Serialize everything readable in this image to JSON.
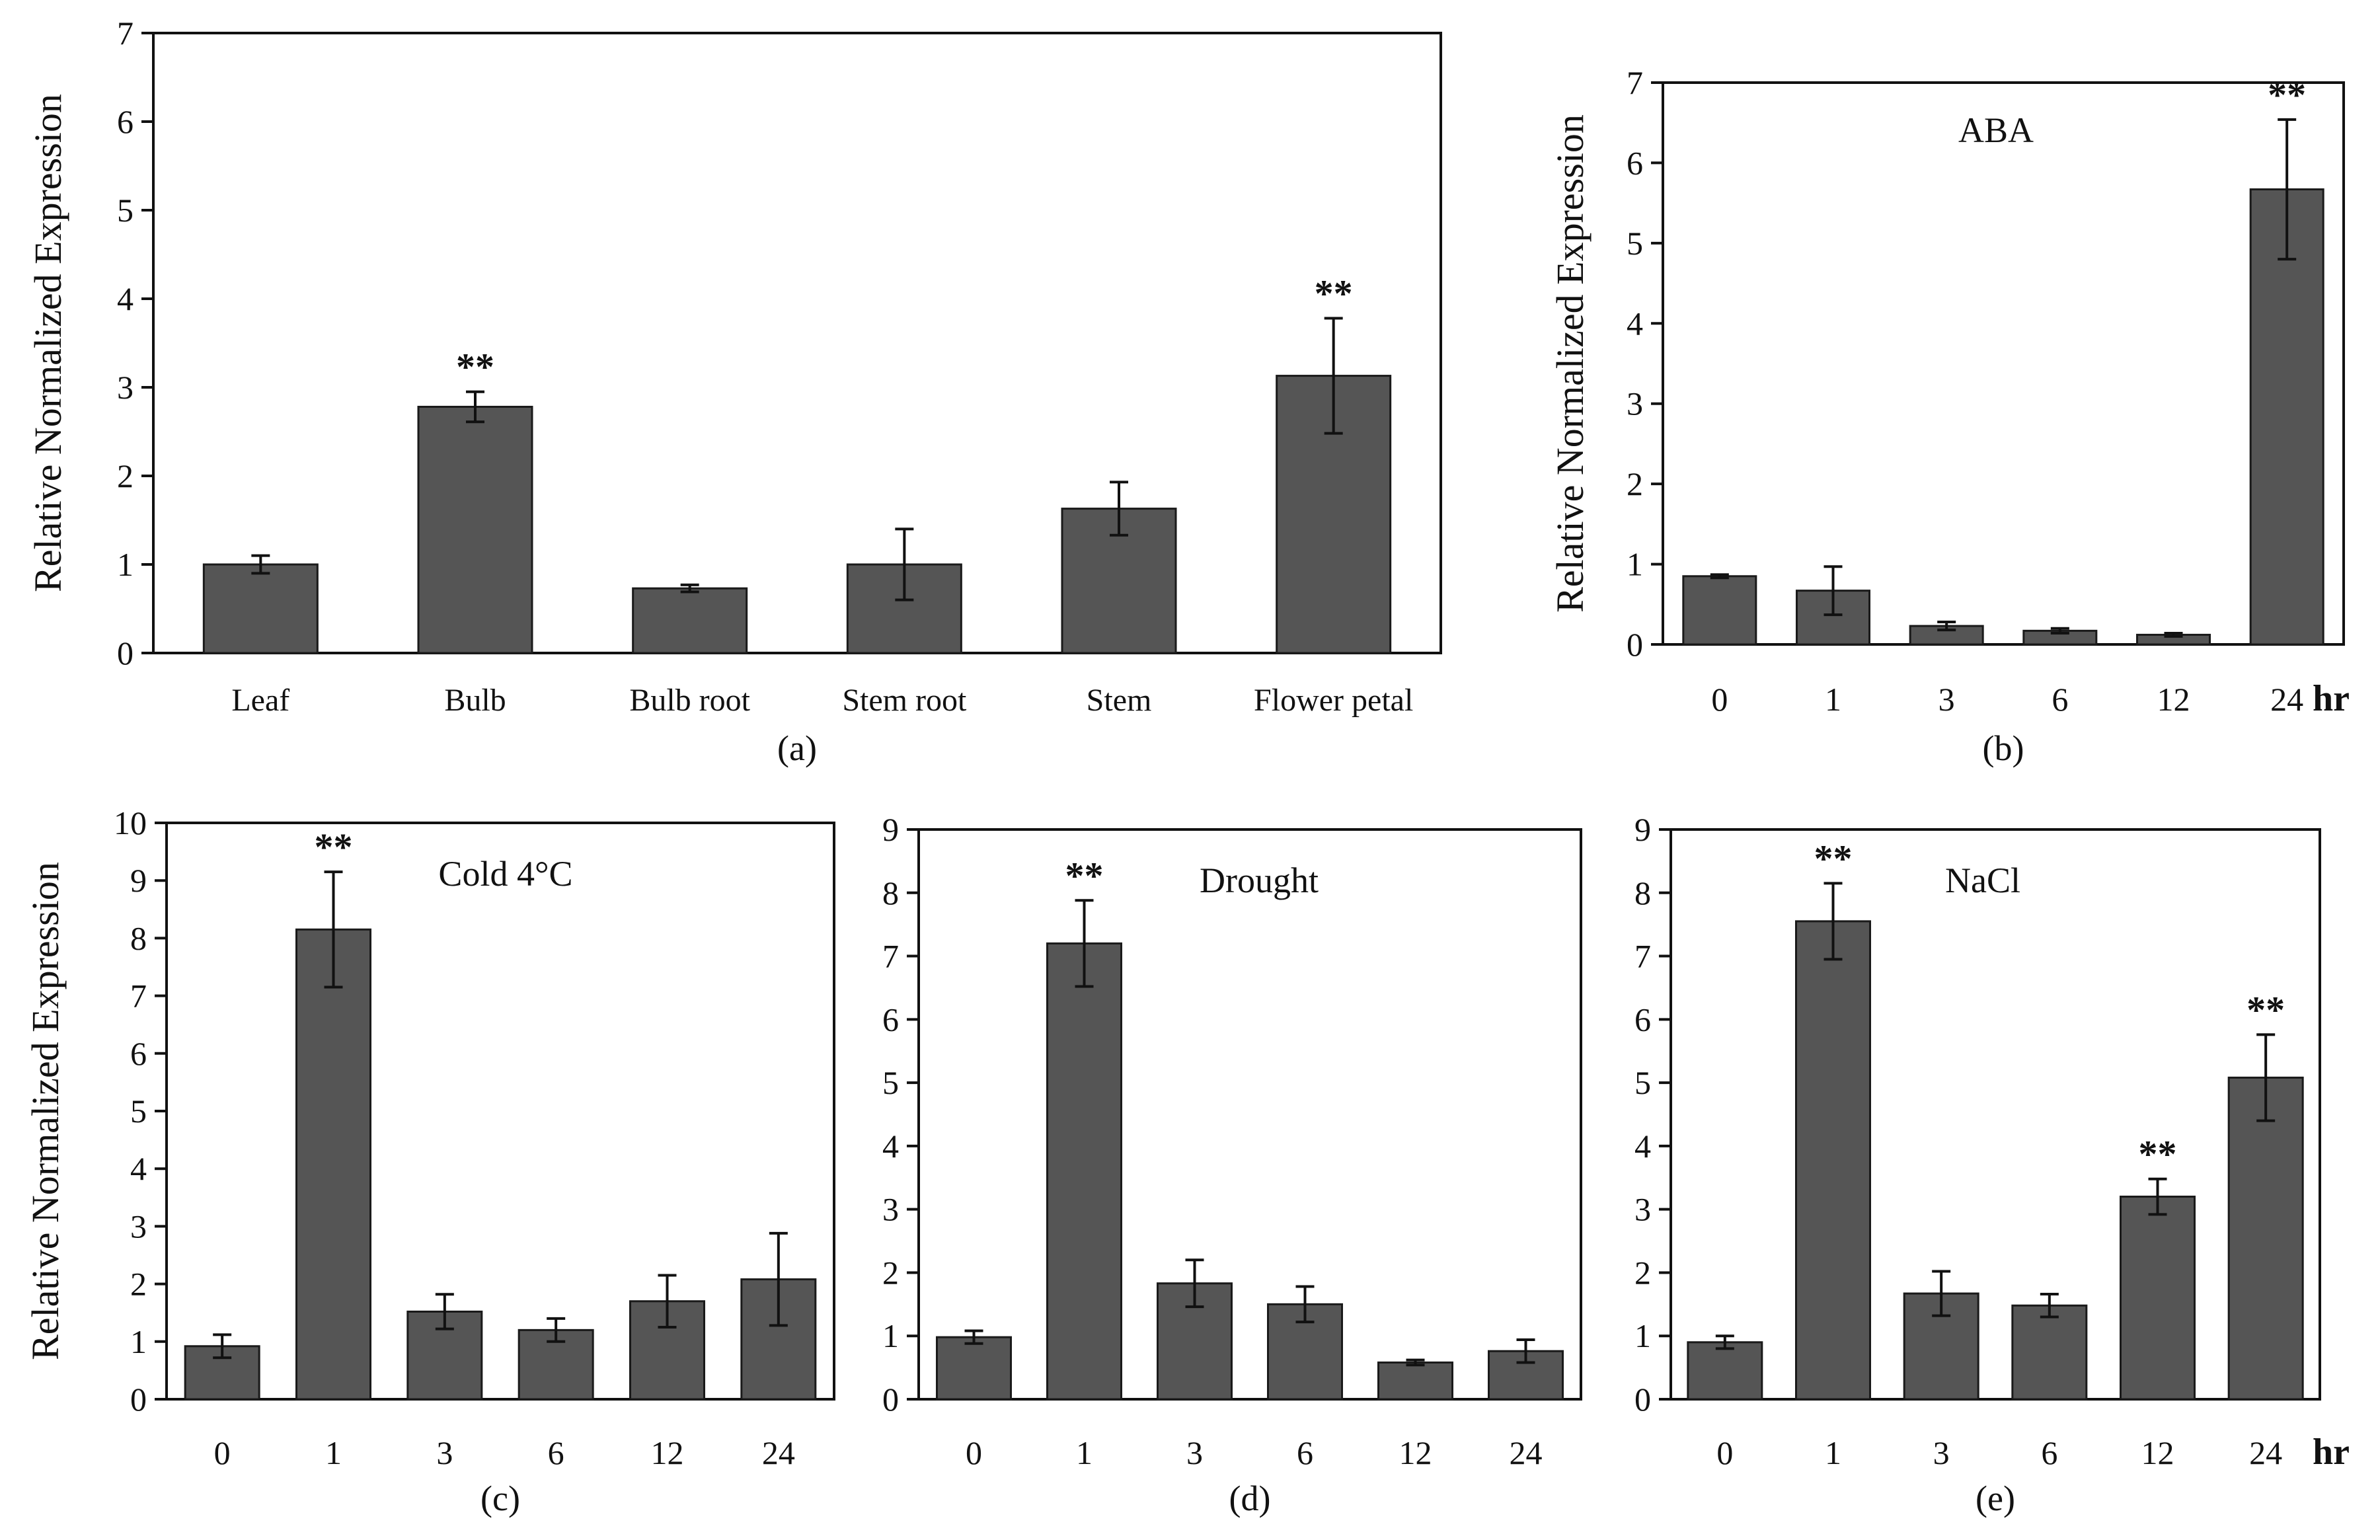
{
  "colors": {
    "bar": "#555555",
    "bar_stroke": "#1a1a1a",
    "axis": "#111111"
  },
  "chart_data": [
    {
      "id": "a",
      "type": "bar",
      "panel_label": "(a)",
      "condition": "",
      "unit": "",
      "categories": [
        "Leaf",
        "Bulb",
        "Bulb root",
        "Stem root",
        "Stem",
        "Flower petal"
      ],
      "values": [
        1.0,
        2.78,
        0.73,
        1.0,
        1.63,
        3.13
      ],
      "errors": [
        0.1,
        0.17,
        0.04,
        0.4,
        0.3,
        0.65
      ],
      "significance": [
        "",
        "**",
        "",
        "",
        "",
        "**"
      ],
      "ylabel": "Relative Normalized Expression",
      "ylim": [
        0,
        7
      ],
      "yticks": [
        "0",
        "1",
        "2",
        "3",
        "4",
        "5",
        "6",
        "7"
      ]
    },
    {
      "id": "b",
      "type": "bar",
      "panel_label": "(b)",
      "condition": "ABA",
      "unit": "hr",
      "categories": [
        "0",
        "1",
        "3",
        "6",
        "12",
        "24"
      ],
      "values": [
        0.85,
        0.67,
        0.23,
        0.17,
        0.12,
        5.67
      ],
      "errors": [
        0.02,
        0.3,
        0.05,
        0.03,
        0.02,
        0.87
      ],
      "significance": [
        "",
        "",
        "",
        "",
        "",
        "**"
      ],
      "ylabel": "Relative Normalized Expression",
      "ylim": [
        0,
        7
      ],
      "yticks": [
        "0",
        "1",
        "2",
        "3",
        "4",
        "5",
        "6",
        "7"
      ]
    },
    {
      "id": "c",
      "type": "bar",
      "panel_label": "(c)",
      "condition": "Cold 4°C",
      "unit": "",
      "categories": [
        "0",
        "1",
        "3",
        "6",
        "12",
        "24"
      ],
      "values": [
        0.92,
        8.15,
        1.52,
        1.2,
        1.7,
        2.08
      ],
      "errors": [
        0.2,
        1.0,
        0.3,
        0.2,
        0.45,
        0.8
      ],
      "significance": [
        "",
        "**",
        "",
        "",
        "",
        ""
      ],
      "ylabel": "Relative Normalized Expression",
      "ylim": [
        0,
        10
      ],
      "yticks": [
        "0",
        "1",
        "2",
        "3",
        "4",
        "5",
        "6",
        "7",
        "8",
        "9",
        "10"
      ]
    },
    {
      "id": "d",
      "type": "bar",
      "panel_label": "(d)",
      "condition": "Drought",
      "unit": "",
      "categories": [
        "0",
        "1",
        "3",
        "6",
        "12",
        "24"
      ],
      "values": [
        0.98,
        7.2,
        1.83,
        1.5,
        0.58,
        0.76
      ],
      "errors": [
        0.1,
        0.68,
        0.37,
        0.28,
        0.04,
        0.18
      ],
      "significance": [
        "",
        "**",
        "",
        "",
        "",
        ""
      ],
      "ylabel": "",
      "ylim": [
        0,
        9
      ],
      "yticks": [
        "0",
        "1",
        "2",
        "3",
        "4",
        "5",
        "6",
        "7",
        "8",
        "9"
      ]
    },
    {
      "id": "e",
      "type": "bar",
      "panel_label": "(e)",
      "condition": "NaCl",
      "unit": "hr",
      "categories": [
        "0",
        "1",
        "3",
        "6",
        "12",
        "24"
      ],
      "values": [
        0.9,
        7.55,
        1.67,
        1.48,
        3.2,
        5.08
      ],
      "errors": [
        0.1,
        0.6,
        0.35,
        0.18,
        0.28,
        0.68
      ],
      "significance": [
        "",
        "**",
        "",
        "",
        "**",
        "**"
      ],
      "ylabel": "",
      "ylim": [
        0,
        9
      ],
      "yticks": [
        "0",
        "1",
        "2",
        "3",
        "4",
        "5",
        "6",
        "7",
        "8",
        "9"
      ]
    }
  ]
}
